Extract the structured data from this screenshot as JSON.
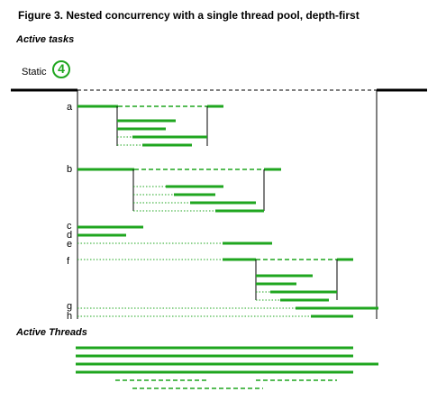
{
  "figure_title": "Figure 3.  Nested concurrency with a single thread pool, depth-first",
  "headings": {
    "active_tasks": "Active tasks",
    "active_threads": "Active Threads"
  },
  "pool": {
    "label": "Static",
    "thread_count": "4"
  },
  "colors": {
    "thread_bar": "#1fa61f",
    "timeline": "#000000",
    "dotted_wait": "#1fa61f"
  },
  "tasks": [
    "a",
    "b",
    "c",
    "d",
    "e",
    "f",
    "g",
    "h"
  ]
}
